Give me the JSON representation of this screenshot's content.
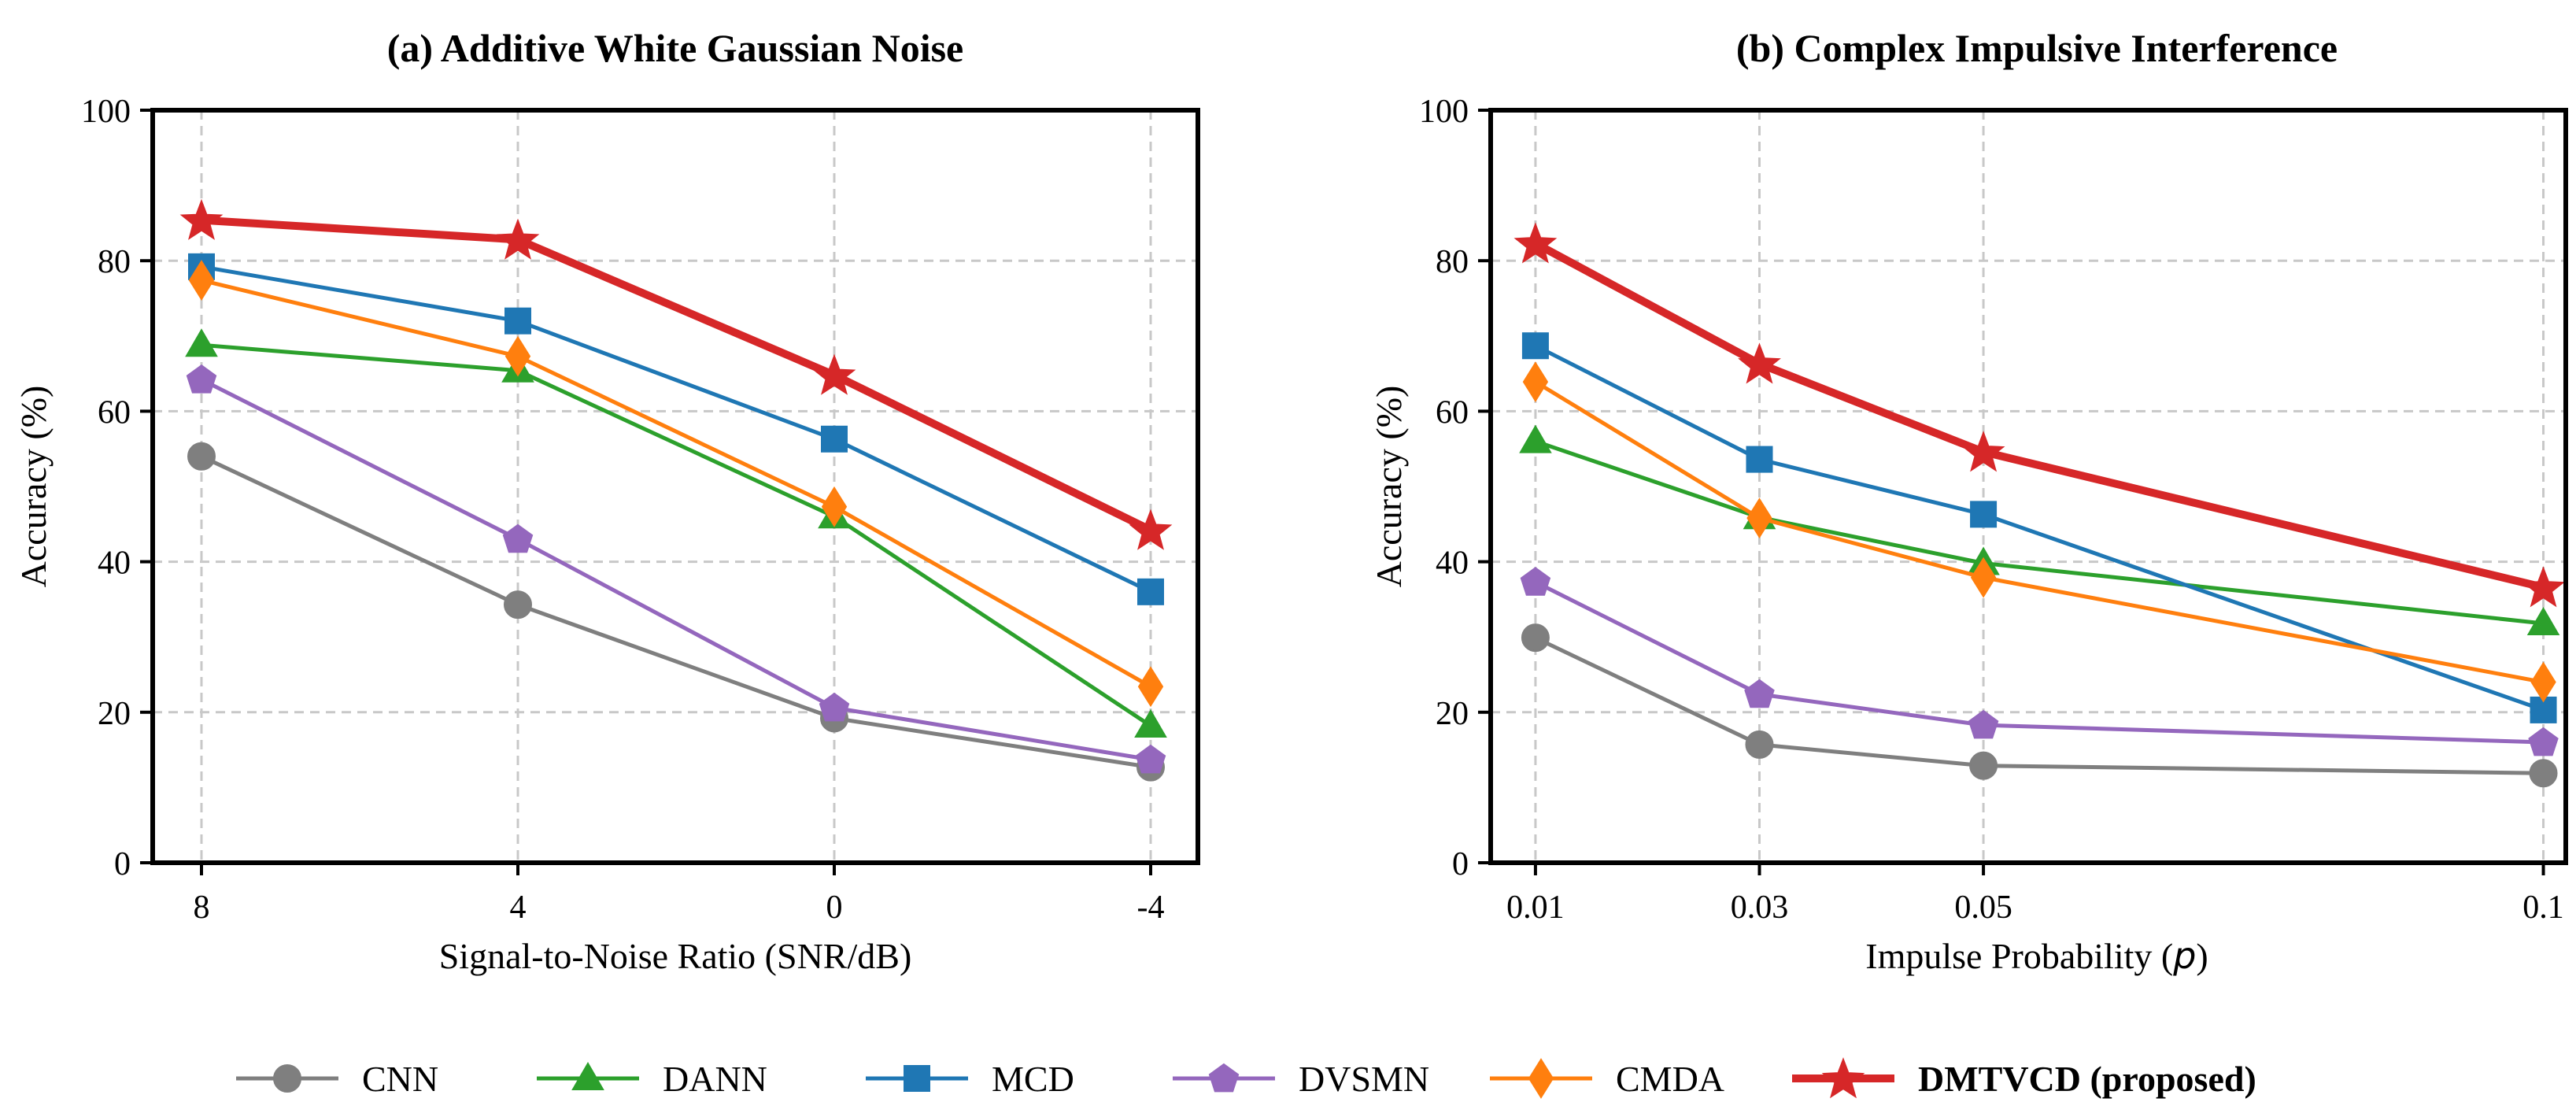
{
  "chart_data": [
    {
      "type": "line",
      "title": "(a) Additive White Gaussian Noise",
      "xlabel": "Signal-to-Noise Ratio (SNR/dB)",
      "ylabel": "Accuracy (%)",
      "categories": [
        "8",
        "4",
        "0",
        "-4"
      ],
      "ylim": [
        0,
        100
      ],
      "yticks": [
        "0",
        "20",
        "40",
        "60",
        "80",
        "100"
      ],
      "grid": true,
      "series": [
        {
          "name": "CNN",
          "values": [
            54.0,
            34.3,
            19.2,
            12.7
          ]
        },
        {
          "name": "DANN",
          "values": [
            68.8,
            65.4,
            46.0,
            18.2
          ]
        },
        {
          "name": "MCD",
          "values": [
            79.2,
            72.0,
            56.3,
            36.0
          ]
        },
        {
          "name": "DVSMN",
          "values": [
            64.2,
            43.0,
            20.6,
            13.7
          ]
        },
        {
          "name": "CMDA",
          "values": [
            77.4,
            67.3,
            47.3,
            23.4
          ]
        },
        {
          "name": "DMTVCD (proposed)",
          "values": [
            85.4,
            82.8,
            64.8,
            44.2
          ]
        }
      ]
    },
    {
      "type": "line",
      "title": "(b) Complex Impulsive Interference",
      "xlabel_prefix": "Impulse Probability (",
      "xlabel_var": "p",
      "xlabel_suffix": ")",
      "ylabel": "Accuracy (%)",
      "x": [
        0.01,
        0.03,
        0.05,
        0.1
      ],
      "xticks": [
        "0.01",
        "0.03",
        "0.05",
        "0.1"
      ],
      "xlim": [
        0.006,
        0.102
      ],
      "ylim": [
        0,
        100
      ],
      "yticks": [
        "0",
        "20",
        "40",
        "60",
        "80",
        "100"
      ],
      "grid": true,
      "series": [
        {
          "name": "CNN",
          "values": [
            29.9,
            15.7,
            12.9,
            11.9
          ]
        },
        {
          "name": "DANN",
          "values": [
            56.0,
            45.9,
            39.8,
            31.8
          ]
        },
        {
          "name": "MCD",
          "values": [
            68.7,
            53.6,
            46.3,
            20.3
          ]
        },
        {
          "name": "DVSMN",
          "values": [
            37.3,
            22.4,
            18.3,
            16.0
          ]
        },
        {
          "name": "CMDA",
          "values": [
            63.9,
            45.8,
            37.9,
            24.0
          ]
        },
        {
          "name": "DMTVCD (proposed)",
          "values": [
            82.3,
            66.3,
            54.6,
            36.6
          ]
        }
      ]
    }
  ],
  "legend": {
    "placement": "bottom-center",
    "items": [
      {
        "name": "CNN",
        "color": "#7f7f7f",
        "marker": "circle",
        "bold": false
      },
      {
        "name": "DANN",
        "color": "#2ca02c",
        "marker": "triangle",
        "bold": false
      },
      {
        "name": "MCD",
        "color": "#1f77b4",
        "marker": "square",
        "bold": false
      },
      {
        "name": "DVSMN",
        "color": "#9467bd",
        "marker": "pentagon",
        "bold": false
      },
      {
        "name": "CMDA",
        "color": "#ff7f0e",
        "marker": "diamond",
        "bold": false
      },
      {
        "name": "DMTVCD (proposed)",
        "color": "#d62728",
        "marker": "star",
        "bold": true
      }
    ]
  }
}
